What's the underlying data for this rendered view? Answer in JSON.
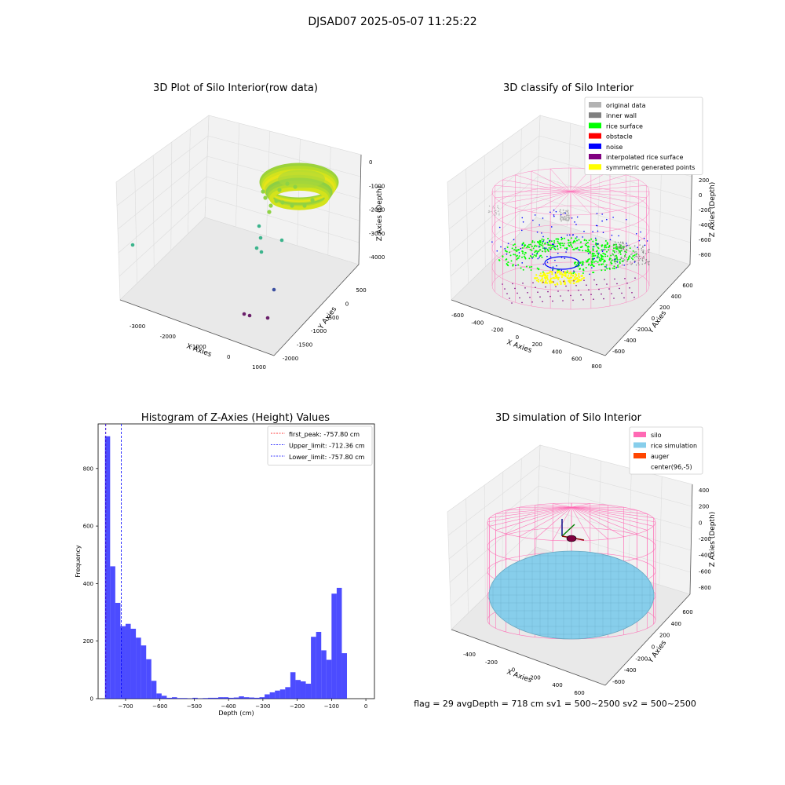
{
  "suptitle": "DJSAD07 2025-05-07 11:25:22",
  "footer": "flag = 29  avgDepth = 718 cm  sv1 = 500~2500  sv2 = 500~2500",
  "colors": {
    "original": "#b3b3b3",
    "inner_wall": "#808080",
    "rice_surface": "#00ff00",
    "obstacle": "#ff0000",
    "noise": "#0000ff",
    "interp": "#800080",
    "symmetric": "#ffff00",
    "silo": "#ff69b4",
    "rice_sim": "#87ceeb",
    "auger": "#ff4500",
    "hist": "#0000ff"
  },
  "chart_data": [
    {
      "type": "scatter",
      "title": "3D Plot of Silo Interior(row data)",
      "xlabel": "X Axies",
      "ylabel": "Y Axies",
      "zlabel": "Z Axies (Depth)",
      "x_ticks": [
        "-3000",
        "-2000",
        "-1000",
        "0",
        "1000"
      ],
      "y_ticks": [
        "-2000",
        "-1500",
        "-1000",
        "-500",
        "0",
        "500"
      ],
      "z_ticks": [
        "0",
        "-1000",
        "-2000",
        "-3000",
        "-4000"
      ],
      "outlier_points": [
        {
          "x": -3300,
          "y": 400,
          "z": -3300,
          "color": "#3cb48c"
        },
        {
          "x": -550,
          "y": -100,
          "z": -2300,
          "color": "#3cb48c"
        },
        {
          "x": -500,
          "y": -300,
          "z": -2600,
          "color": "#3cb48c"
        },
        {
          "x": -350,
          "y": 150,
          "z": -2900,
          "color": "#3cb48c"
        },
        {
          "x": -600,
          "y": -600,
          "z": -2900,
          "color": "#3cb48c"
        },
        {
          "x": -400,
          "y": -750,
          "z": -3100,
          "color": "#3cb48c"
        },
        {
          "x": 300,
          "y": -300,
          "z": -4300,
          "color": "#3b4fa0"
        },
        {
          "x": -350,
          "y": -1300,
          "z": -4300,
          "color": "#6a1f6a"
        },
        {
          "x": -250,
          "y": -1250,
          "z": -4400,
          "color": "#6a1f6a"
        },
        {
          "x": 300,
          "y": -1100,
          "z": -4500,
          "color": "#6a1f6a"
        }
      ]
    },
    {
      "type": "scatter",
      "title": "3D classify of Silo Interior",
      "xlabel": "X Axies",
      "ylabel": "Y Axies",
      "zlabel": "Z Axies (Depth)",
      "x_ticks": [
        "-600",
        "-400",
        "-200",
        "0",
        "200",
        "400",
        "600",
        "800"
      ],
      "y_ticks": [
        "-600",
        "-400",
        "-200",
        "0",
        "200",
        "400",
        "600"
      ],
      "z_ticks": [
        "200",
        "0",
        "-200",
        "-400",
        "-600",
        "-800"
      ],
      "legend": [
        "original data",
        "inner wall",
        "rice surface",
        "obstacle",
        "noise",
        "interpolated rice surface",
        "symmetric generated points"
      ],
      "legend_placement": "top-right"
    },
    {
      "type": "bar",
      "title": "Histogram of Z-Axies (Height) Values",
      "xlabel": "Depth (cm)",
      "ylabel": "Frequency",
      "xlim": [
        -780,
        25
      ],
      "ylim": [
        0,
        955
      ],
      "bin_start": -760,
      "bin_width": 15,
      "values": [
        912,
        460,
        333,
        252,
        260,
        243,
        212,
        185,
        137,
        62,
        18,
        10,
        3,
        5,
        2,
        2,
        1,
        3,
        1,
        2,
        3,
        3,
        5,
        5,
        3,
        4,
        8,
        5,
        4,
        3,
        5,
        15,
        22,
        28,
        32,
        40,
        92,
        65,
        60,
        52,
        215,
        232,
        168,
        135,
        365,
        385,
        158
      ],
      "x_ticks": [
        -700,
        -600,
        -500,
        -400,
        -300,
        -200,
        -100,
        0
      ],
      "y_ticks": [
        0,
        200,
        400,
        600,
        800
      ],
      "vlines": [
        {
          "x": -757.8,
          "color": "#ff0000"
        },
        {
          "x": -712.36,
          "color": "#0000ff"
        },
        {
          "x": -757.8,
          "color": "#0000ff"
        }
      ],
      "legend": [
        "first_peak: -757.80 cm",
        "Upper_limit: -712.36 cm",
        "Lower_limit: -757.80 cm"
      ],
      "legend_placement": "top-right"
    },
    {
      "type": "scatter",
      "title": "3D simulation of Silo Interior",
      "xlabel": "X Axies",
      "ylabel": "Y Axies",
      "zlabel": "Z Axies (Depth)",
      "x_ticks": [
        "-400",
        "-200",
        "0",
        "200",
        "400",
        "600"
      ],
      "y_ticks": [
        "-600",
        "-400",
        "-200",
        "0",
        "200",
        "400",
        "600"
      ],
      "z_ticks": [
        "400",
        "200",
        "0",
        "-200",
        "-400",
        "-600",
        "-800"
      ],
      "legend": [
        "silo",
        "rice simulation",
        "auger",
        "center(96,-5)"
      ],
      "legend_placement": "top-right"
    }
  ]
}
